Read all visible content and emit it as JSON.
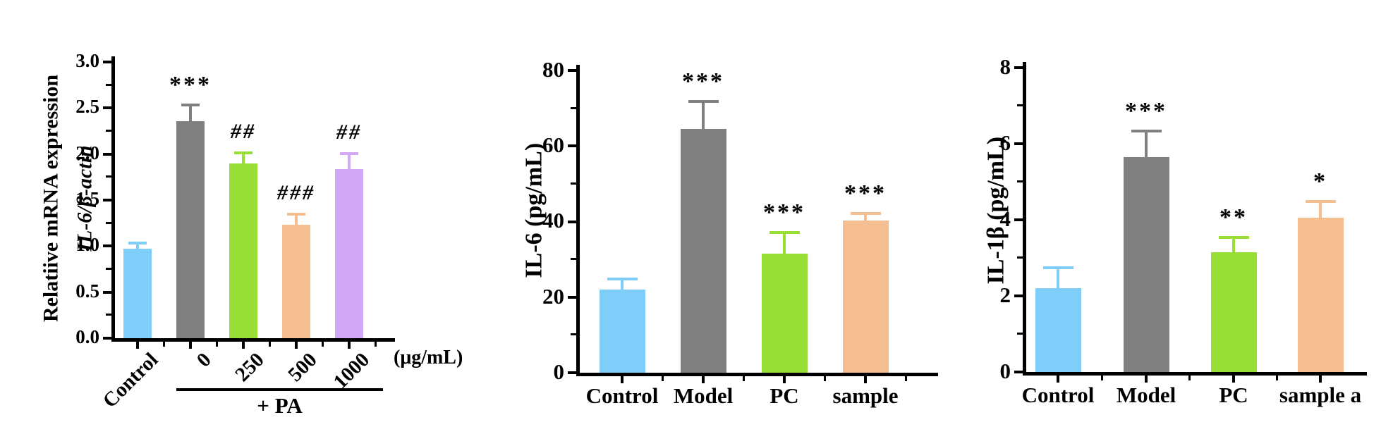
{
  "figure": {
    "description_labels": {
      "left_ylabel_line1": "Relatiive mRNA expression",
      "left_ylabel_line2": "IL-6/β-actin",
      "middle_ylabel": "IL-6 (pg/mL)",
      "right_ylabel": "IL-1β (pg/mL)"
    }
  },
  "chart_data": [
    {
      "type": "bar",
      "title": "",
      "ylabel": "Relatiive mRNA expression",
      "ylabel_line2": "IL-6/β-actin",
      "xlabel": "",
      "categories": [
        "Control",
        "0",
        "250",
        "500",
        "1000"
      ],
      "values": [
        0.97,
        2.36,
        1.9,
        1.23,
        1.84
      ],
      "errors": [
        0.05,
        0.16,
        0.1,
        0.1,
        0.15
      ],
      "significance": [
        "",
        "***",
        "##",
        "###",
        "##"
      ],
      "bar_colors": [
        "#7FCEFA",
        "#808080",
        "#97DF35",
        "#F5BE90",
        "#D3A9F5"
      ],
      "ylim": [
        0,
        3
      ],
      "ytick_step": 0.5,
      "ytick_labels": [
        "0.0",
        "0.5",
        "1.0",
        "1.5",
        "2.0",
        "2.5",
        "3.0"
      ],
      "x_unit_label": "(μg/mL)",
      "group_annotation": {
        "label": "+ PA",
        "from_category": "0",
        "to_category": "1000"
      },
      "xtick_rotation_deg": 45,
      "grid": false,
      "legend": "none"
    },
    {
      "type": "bar",
      "title": "",
      "ylabel": "IL-6 (pg/mL)",
      "xlabel": "",
      "categories": [
        "Control",
        "Model",
        "PC",
        "sample"
      ],
      "values": [
        22,
        64.5,
        31.5,
        40.3
      ],
      "errors": [
        2.5,
        7,
        5.3,
        1.4
      ],
      "significance": [
        "",
        "***",
        "***",
        "***"
      ],
      "bar_colors": [
        "#7FCEFA",
        "#808080",
        "#97DF35",
        "#F5BE90"
      ],
      "ylim": [
        0,
        80
      ],
      "ytick_step": 20,
      "ytick_labels": [
        "0",
        "20",
        "40",
        "60",
        "80"
      ],
      "xtick_rotation_deg": 0,
      "grid": false,
      "legend": "none"
    },
    {
      "type": "bar",
      "title": "",
      "ylabel": "IL-1β (pg/mL)",
      "xlabel": "",
      "categories": [
        "Control",
        "Model",
        "PC",
        "sample a"
      ],
      "values": [
        2.2,
        5.65,
        3.15,
        4.05
      ],
      "errors": [
        0.5,
        0.65,
        0.35,
        0.4
      ],
      "significance": [
        "",
        "***",
        "**",
        "*"
      ],
      "bar_colors": [
        "#7FCEFA",
        "#808080",
        "#97DF35",
        "#F5BE90"
      ],
      "ylim": [
        0,
        8
      ],
      "ytick_step": 2,
      "ytick_labels": [
        "0",
        "2",
        "4",
        "6",
        "8"
      ],
      "xtick_rotation_deg": 0,
      "grid": false,
      "legend": "none"
    }
  ]
}
